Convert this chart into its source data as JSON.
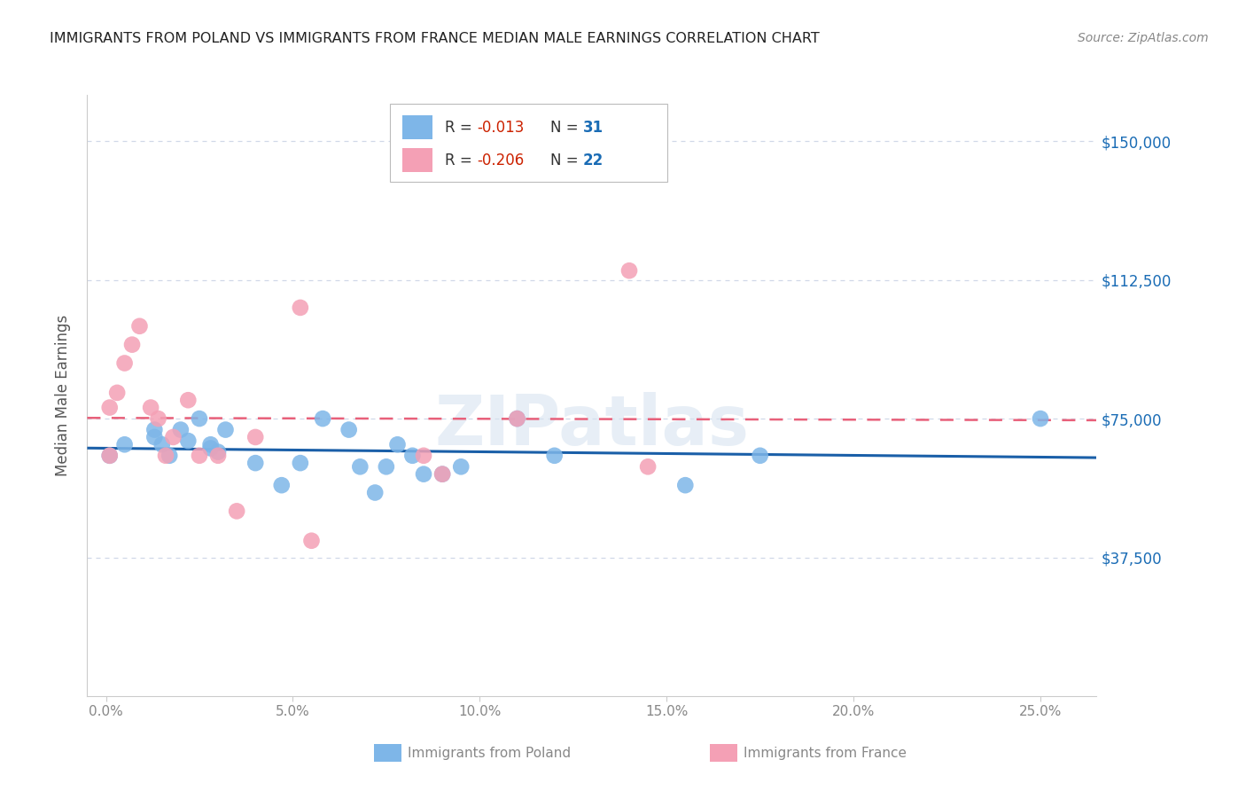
{
  "title": "IMMIGRANTS FROM POLAND VS IMMIGRANTS FROM FRANCE MEDIAN MALE EARNINGS CORRELATION CHART",
  "source": "Source: ZipAtlas.com",
  "ylabel": "Median Male Earnings",
  "xlabel_ticks": [
    "0.0%",
    "5.0%",
    "10.0%",
    "15.0%",
    "20.0%",
    "25.0%"
  ],
  "xlabel_vals": [
    0.0,
    0.05,
    0.1,
    0.15,
    0.2,
    0.25
  ],
  "ytick_labels": [
    "$37,500",
    "$75,000",
    "$112,500",
    "$150,000"
  ],
  "ytick_vals": [
    37500,
    75000,
    112500,
    150000
  ],
  "ylim": [
    0,
    162500
  ],
  "xlim": [
    -0.005,
    0.265
  ],
  "R_poland": -0.013,
  "N_poland": 31,
  "R_france": -0.206,
  "N_france": 22,
  "poland_color": "#7EB6E8",
  "france_color": "#F4A0B5",
  "poland_line_color": "#1A5FA8",
  "france_line_color": "#E8607A",
  "watermark_color": "#D8E4F0",
  "background_color": "#FFFFFF",
  "grid_color": "#D0D8E8",
  "poland_x": [
    0.001,
    0.005,
    0.013,
    0.013,
    0.015,
    0.017,
    0.02,
    0.022,
    0.025,
    0.028,
    0.028,
    0.03,
    0.032,
    0.04,
    0.047,
    0.052,
    0.058,
    0.065,
    0.068,
    0.072,
    0.075,
    0.078,
    0.082,
    0.085,
    0.09,
    0.095,
    0.11,
    0.12,
    0.155,
    0.175,
    0.25
  ],
  "poland_y": [
    65000,
    68000,
    70000,
    72000,
    68000,
    65000,
    72000,
    69000,
    75000,
    67000,
    68000,
    66000,
    72000,
    63000,
    57000,
    63000,
    75000,
    72000,
    62000,
    55000,
    62000,
    68000,
    65000,
    60000,
    60000,
    62000,
    75000,
    65000,
    57000,
    65000,
    75000
  ],
  "france_x": [
    0.001,
    0.001,
    0.003,
    0.005,
    0.007,
    0.009,
    0.012,
    0.014,
    0.016,
    0.018,
    0.022,
    0.025,
    0.03,
    0.035,
    0.04,
    0.052,
    0.055,
    0.085,
    0.09,
    0.11,
    0.14,
    0.145
  ],
  "france_y": [
    65000,
    78000,
    82000,
    90000,
    95000,
    100000,
    78000,
    75000,
    65000,
    70000,
    80000,
    65000,
    65000,
    50000,
    70000,
    105000,
    42000,
    65000,
    60000,
    75000,
    115000,
    62000
  ],
  "r_label_color": "#CC2200",
  "n_label_color": "#1A6CB5",
  "rn_text_color": "#333333",
  "tick_label_color": "#888888",
  "ylabel_color": "#555555",
  "title_color": "#222222",
  "source_color": "#888888"
}
